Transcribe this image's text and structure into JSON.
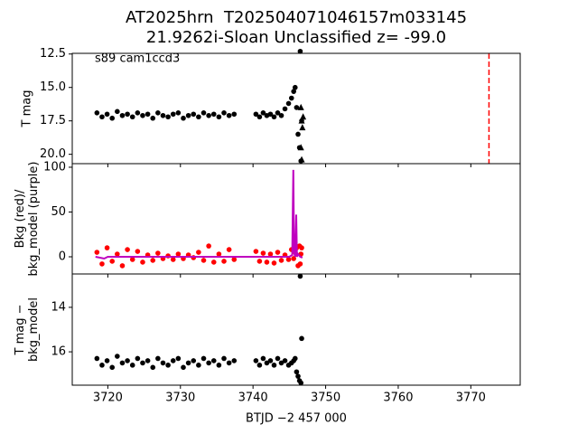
{
  "chart_data": [
    {
      "type": "scatter",
      "title": [
        "AT2025hrn  T202504071046157m033145",
        "21.9262i-Sloan Unclassified z= -99.0"
      ],
      "annotation": "s89 cam1ccd3",
      "ylabel": [
        "T mag"
      ],
      "ylim": [
        20.7,
        12.45
      ],
      "yticks": [
        {
          "value": 12.5,
          "label": "12.5"
        },
        {
          "value": 15,
          "label": "15.0"
        },
        17.5,
        {
          "value": 20,
          "label": "20.0"
        }
      ],
      "vlines": [
        {
          "value": 3772.5,
          "color": "#ff0000",
          "style": "dashed"
        }
      ],
      "series": [
        {
          "color": "#000000",
          "marker": "o",
          "x": [
            3718.5,
            3719.2,
            3719.9,
            3720.6,
            3721.3,
            3722.0,
            3722.7,
            3723.4,
            3724.1,
            3724.8,
            3725.5,
            3726.2,
            3726.9,
            3727.6,
            3728.3,
            3729.0,
            3729.7,
            3730.4,
            3731.1,
            3731.8,
            3732.5,
            3733.2,
            3733.9,
            3734.6,
            3735.3,
            3736.0,
            3736.7,
            3737.4,
            3740.4,
            3740.9,
            3741.4,
            3741.9,
            3742.4,
            3742.9,
            3743.4,
            3743.9,
            3744.4,
            3744.9,
            3745.3,
            3745.6,
            3745.8,
            3746.0,
            3746.2,
            3746.4,
            3746.5,
            3746.6,
            3746.7
          ],
          "values": [
            16.9,
            17.2,
            17.0,
            17.3,
            16.8,
            17.1,
            17.0,
            17.2,
            16.9,
            17.1,
            17.0,
            17.3,
            16.9,
            17.1,
            17.2,
            17.0,
            16.9,
            17.3,
            17.1,
            17.0,
            17.2,
            16.9,
            17.1,
            17.0,
            17.2,
            16.9,
            17.1,
            17.0,
            17.0,
            17.2,
            16.9,
            17.1,
            17.0,
            17.2,
            16.9,
            17.1,
            16.6,
            16.2,
            15.8,
            15.3,
            15.0,
            16.5,
            18.5,
            19.5,
            12.3,
            20.5,
            17.5
          ]
        },
        {
          "color": "#000000",
          "marker": "^",
          "x": [
            3746.6,
            3746.7,
            3746.8,
            3746.9,
            3746.6,
            3746.7
          ],
          "values": [
            16.5,
            17.5,
            18.0,
            17.2,
            19.5,
            20.4
          ]
        }
      ]
    },
    {
      "type": "scatter",
      "ylabel": [
        "Bkg (red)/",
        "bkg_model (purple)"
      ],
      "ylim": [
        -19.2,
        104
      ],
      "yticks": [
        0,
        50,
        100
      ],
      "series": [
        {
          "color": "#ff0000",
          "marker": "o",
          "x": [
            3718.5,
            3719.2,
            3719.9,
            3720.6,
            3721.3,
            3722.0,
            3722.7,
            3723.4,
            3724.1,
            3724.8,
            3725.5,
            3726.2,
            3726.9,
            3727.6,
            3728.3,
            3729.0,
            3729.7,
            3730.4,
            3731.1,
            3731.8,
            3732.5,
            3733.2,
            3733.9,
            3734.6,
            3735.3,
            3736.0,
            3736.7,
            3737.4,
            3740.4,
            3740.9,
            3741.4,
            3741.9,
            3742.4,
            3742.9,
            3743.4,
            3743.9,
            3744.4,
            3744.9,
            3745.3,
            3745.6,
            3745.8,
            3746.0,
            3746.2,
            3746.4,
            3746.5,
            3746.6,
            3746.7
          ],
          "values": [
            5,
            -8,
            10,
            -5,
            3,
            -10,
            8,
            -3,
            6,
            -6,
            2,
            -4,
            4,
            -2,
            1,
            -3,
            3,
            -2,
            2,
            -1,
            5,
            -4,
            12,
            -6,
            3,
            -5,
            8,
            -3,
            6,
            -5,
            4,
            -6,
            3,
            -7,
            5,
            -4,
            2,
            -3,
            8,
            -2,
            5,
            10,
            -10,
            12,
            -8,
            3,
            10
          ]
        },
        {
          "color": "#bf00bf",
          "marker": "line",
          "x": [
            3718.3,
            3719.5,
            3720.0,
            3725.0,
            3730.0,
            3737.8,
            3740.3,
            3745.0,
            3745.4,
            3745.55,
            3745.65,
            3745.8,
            3745.95,
            3746.05,
            3746.2,
            3746.5,
            3746.8
          ],
          "values": [
            0,
            -2,
            0,
            0,
            0,
            0,
            0,
            0,
            2,
            97,
            5,
            0,
            47,
            0,
            3,
            0,
            -1
          ]
        }
      ]
    },
    {
      "type": "scatter",
      "ylabel": [
        "T mag −",
        "bkg_model"
      ],
      "xlabel": "BTJD −2 457 000",
      "ylim": [
        17.5,
        12.5
      ],
      "yticks": [
        14,
        16
      ],
      "xlim": [
        3715.1,
        3776.8
      ],
      "xticks": [
        3720,
        3730,
        3740,
        3750,
        3760,
        3770
      ],
      "series": [
        {
          "color": "#000000",
          "marker": "o",
          "x": [
            3718.5,
            3719.2,
            3719.9,
            3720.6,
            3721.3,
            3722.0,
            3722.7,
            3723.4,
            3724.1,
            3724.8,
            3725.5,
            3726.2,
            3726.9,
            3727.6,
            3728.3,
            3729.0,
            3729.7,
            3730.4,
            3731.1,
            3731.8,
            3732.5,
            3733.2,
            3733.9,
            3734.6,
            3735.3,
            3736.0,
            3736.7,
            3737.4,
            3740.4,
            3740.9,
            3741.4,
            3741.9,
            3742.4,
            3742.9,
            3743.4,
            3743.9,
            3744.4,
            3744.9,
            3745.3,
            3745.6,
            3745.8,
            3746.0,
            3746.2,
            3746.4,
            3746.5,
            3746.6,
            3746.7
          ],
          "values": [
            16.3,
            16.6,
            16.4,
            16.7,
            16.2,
            16.5,
            16.4,
            16.6,
            16.3,
            16.5,
            16.4,
            16.7,
            16.3,
            16.5,
            16.6,
            16.4,
            16.3,
            16.7,
            16.5,
            16.4,
            16.6,
            16.3,
            16.5,
            16.4,
            16.6,
            16.3,
            16.5,
            16.4,
            16.4,
            16.6,
            16.3,
            16.5,
            16.4,
            16.6,
            16.3,
            16.5,
            16.4,
            16.6,
            16.5,
            16.4,
            16.3,
            16.9,
            17.1,
            17.3,
            12.6,
            17.4,
            15.4
          ]
        }
      ]
    }
  ]
}
